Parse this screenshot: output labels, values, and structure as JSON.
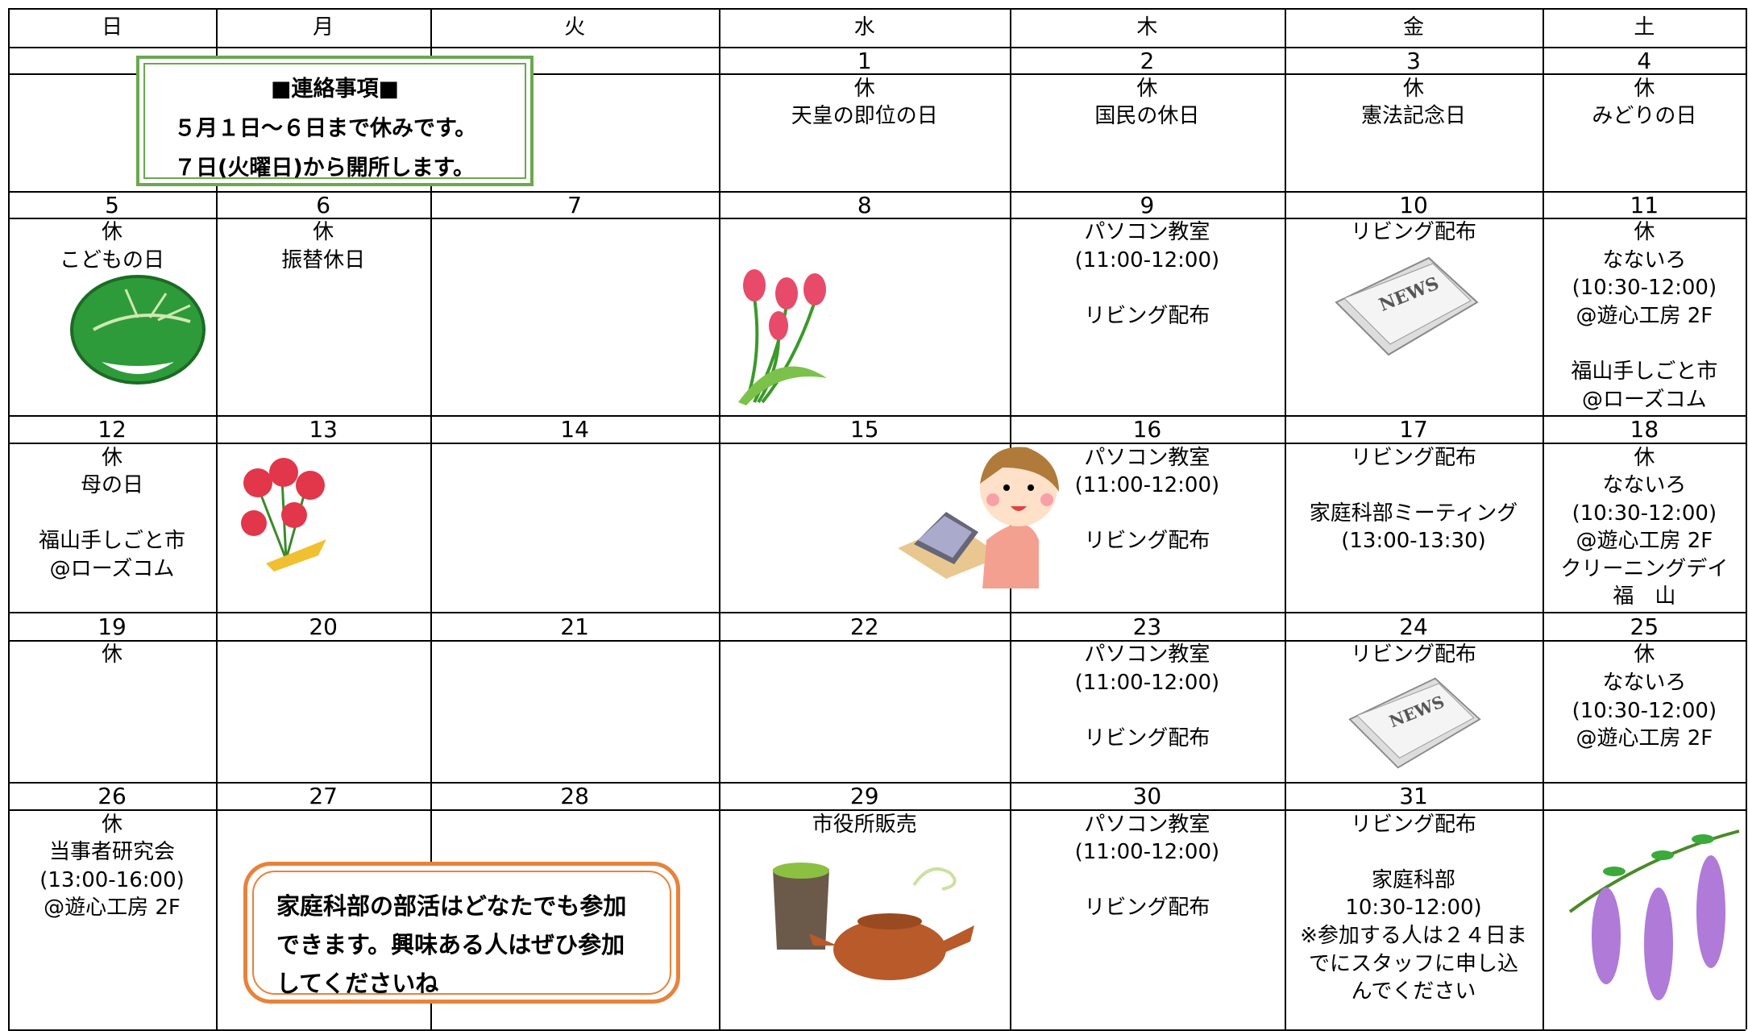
{
  "weekdays": [
    "日",
    "月",
    "火",
    "水",
    "木",
    "金",
    "土"
  ],
  "weeks": [
    {
      "days": [
        {
          "date": null
        },
        {
          "date": null
        },
        {
          "date": null
        },
        {
          "date": "1",
          "items": [
            [
              "休",
              "天皇の即位の日"
            ]
          ]
        },
        {
          "date": "2",
          "items": [
            [
              "休",
              "国民の休日"
            ]
          ]
        },
        {
          "date": "3",
          "items": [
            [
              "休",
              "憲法記念日"
            ]
          ]
        },
        {
          "date": "4",
          "items": [
            [
              "休",
              "みどりの日"
            ]
          ]
        }
      ]
    },
    {
      "days": [
        {
          "date": "5",
          "items": [
            [
              "休",
              "こどもの日"
            ]
          ]
        },
        {
          "date": "6",
          "items": [
            [
              "休",
              "振替休日"
            ]
          ]
        },
        {
          "date": "7"
        },
        {
          "date": "8"
        },
        {
          "date": "9",
          "items": [
            [
              "パソコン教室",
              "(11:00-12:00)"
            ],
            [
              "リビング配布"
            ]
          ]
        },
        {
          "date": "10",
          "items": [
            [
              "リビング配布"
            ]
          ]
        },
        {
          "date": "11",
          "items": [
            [
              "休",
              "なないろ",
              "(10:30-12:00)",
              "@遊心工房 2F"
            ],
            [
              "福山手しごと市",
              "@ローズコム"
            ]
          ]
        }
      ]
    },
    {
      "days": [
        {
          "date": "12",
          "items": [
            [
              "休",
              "母の日"
            ],
            [
              "福山手しごと市",
              "@ローズコム"
            ]
          ]
        },
        {
          "date": "13"
        },
        {
          "date": "14"
        },
        {
          "date": "15"
        },
        {
          "date": "16",
          "items": [
            [
              "パソコン教室",
              "(11:00-12:00)"
            ],
            [
              "リビング配布"
            ]
          ]
        },
        {
          "date": "17",
          "items": [
            [
              "リビング配布"
            ],
            [
              "家庭科部ミーティング",
              "(13:00-13:30)"
            ]
          ]
        },
        {
          "date": "18",
          "items": [
            [
              "休",
              "なないろ",
              "(10:30-12:00)",
              "@遊心工房 2F",
              "クリーニングデイ",
              "福　山"
            ]
          ]
        }
      ]
    },
    {
      "days": [
        {
          "date": "19",
          "items": [
            [
              "休"
            ]
          ]
        },
        {
          "date": "20"
        },
        {
          "date": "21"
        },
        {
          "date": "22"
        },
        {
          "date": "23",
          "items": [
            [
              "パソコン教室",
              "(11:00-12:00)"
            ],
            [
              "リビング配布"
            ]
          ]
        },
        {
          "date": "24",
          "items": [
            [
              "リビング配布"
            ]
          ]
        },
        {
          "date": "25",
          "items": [
            [
              "休",
              "なないろ",
              "(10:30-12:00)",
              "@遊心工房 2F"
            ]
          ]
        }
      ]
    },
    {
      "days": [
        {
          "date": "26",
          "items": [
            [
              "休",
              "当事者研究会",
              "(13:00-16:00)",
              "@遊心工房 2F"
            ]
          ]
        },
        {
          "date": "27"
        },
        {
          "date": "28"
        },
        {
          "date": "29",
          "items": [
            [
              "市役所販売"
            ]
          ]
        },
        {
          "date": "30",
          "items": [
            [
              "パソコン教室",
              "(11:00-12:00)"
            ],
            [
              "リビング配布"
            ]
          ]
        },
        {
          "date": "31",
          "items": [
            [
              "リビング配布"
            ],
            [
              "家庭科部",
              "10:30-12:00)",
              "※参加する人は２４日ま",
              "でにスタッフに申し込",
              "んでください"
            ]
          ]
        },
        {
          "date": null
        }
      ]
    }
  ],
  "notice": {
    "title": "■連絡事項■",
    "lines": [
      "５月１日～６日まで休みです。",
      "７日(火曜日)から開所します。"
    ]
  },
  "club_notice": {
    "lines": [
      "家庭科部の部活はどなたでも参加",
      "できます。興味ある人はぜひ参加",
      "してくださいね"
    ]
  }
}
